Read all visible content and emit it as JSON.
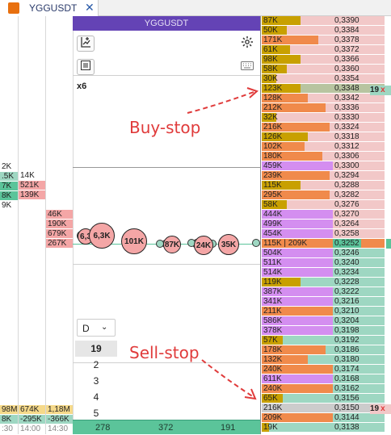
{
  "tab": {
    "title": "YGGUSDT",
    "close": "✕"
  },
  "panel": {
    "title": "YGGUSDT",
    "multiplier": "x6"
  },
  "left_columns": {
    "col1": [
      {
        "t": "2K",
        "bg": ""
      },
      {
        "t": ".5K",
        "bg": "#9ed7c2"
      },
      {
        "t": "7K",
        "bg": "#5bc49a"
      },
      {
        "t": "8K",
        "bg": "#5bc49a"
      },
      {
        "t": "9K",
        "bg": ""
      }
    ],
    "col2": [
      {
        "t": "14K",
        "bg": ""
      },
      {
        "t": "521K",
        "bg": "#f4a6a6"
      },
      {
        "t": "139K",
        "bg": "#f4a6a6"
      }
    ],
    "col3": [
      {
        "t": "46K",
        "bg": "#f4a6a6"
      },
      {
        "t": "190K",
        "bg": "#f4a6a6"
      },
      {
        "t": "679K",
        "bg": "#f4a6a6"
      },
      {
        "t": "267K",
        "bg": "#f4a6a6"
      }
    ]
  },
  "bottom_left": {
    "row1": [
      "98M",
      "674K",
      "1,18M"
    ],
    "row2": [
      "8K",
      "-295K",
      "-366K"
    ],
    "row3": [
      ":30",
      "14:00",
      "14:30"
    ]
  },
  "bubbles": [
    "6,3",
    "6,3K",
    "101K",
    "87K",
    "24K",
    "35K"
  ],
  "dropdown": {
    "selected": "D",
    "options": [
      "19",
      "2",
      "3",
      "4",
      "5"
    ]
  },
  "bottom_bar": [
    "278",
    "372",
    "191"
  ],
  "annotations": {
    "buy": "Buy-stop",
    "sell": "Sell-stop"
  },
  "right_markers": {
    "top": "19",
    "bottom": "19",
    "x": "x"
  },
  "colors": {
    "sell": "#f08a4b",
    "buy_green": "#9ed7c2",
    "purple": "#d48ef0",
    "olive": "#c8a000",
    "pink_bg": "#f2c8c8"
  },
  "ladder": [
    {
      "v": "87K",
      "p": "0,3390",
      "f": 0.55,
      "c": "#c8a000",
      "bg": "#f2c8c8"
    },
    {
      "v": "50K",
      "p": "0,3384",
      "f": 0.35,
      "c": "#c8a000",
      "bg": "#f2c8c8"
    },
    {
      "v": "171K",
      "p": "0,3378",
      "f": 0.8,
      "c": "#f08a4b",
      "bg": "#f2c8c8"
    },
    {
      "v": "61K",
      "p": "0,3372",
      "f": 0.4,
      "c": "#c8a000",
      "bg": "#f2c8c8"
    },
    {
      "v": "98K",
      "p": "0,3366",
      "f": 0.55,
      "c": "#c8a000",
      "bg": "#f2c8c8"
    },
    {
      "v": "58K",
      "p": "0,3360",
      "f": 0.35,
      "c": "#c8a000",
      "bg": "#f2c8c8"
    },
    {
      "v": "30K",
      "p": "0,3354",
      "f": 0.2,
      "c": "#c8a000",
      "bg": "#f2c8c8"
    },
    {
      "v": "123K",
      "p": "0,3348",
      "f": 0.55,
      "c": "#c8a000",
      "bg": "#b8c4a0"
    },
    {
      "v": "128K",
      "p": "0,3342",
      "f": 0.65,
      "c": "#f08a4b",
      "bg": "#f2c8c8"
    },
    {
      "v": "212K",
      "p": "0,3336",
      "f": 0.9,
      "c": "#f08a4b",
      "bg": "#f2c8c8"
    },
    {
      "v": "32K",
      "p": "0,3330",
      "f": 0.2,
      "c": "#c8a000",
      "bg": "#f2c8c8"
    },
    {
      "v": "216K",
      "p": "0,3324",
      "f": 0.95,
      "c": "#f08a4b",
      "bg": "#f2c8c8"
    },
    {
      "v": "126K",
      "p": "0,3318",
      "f": 0.65,
      "c": "#c8a000",
      "bg": "#f2c8c8"
    },
    {
      "v": "102K",
      "p": "0,3312",
      "f": 0.6,
      "c": "#f08a4b",
      "bg": "#f2c8c8"
    },
    {
      "v": "180K",
      "p": "0,3306",
      "f": 0.85,
      "c": "#f08a4b",
      "bg": "#f2c8c8"
    },
    {
      "v": "459K",
      "p": "0,3300",
      "f": 1.0,
      "c": "#d48ef0",
      "bg": "#f2c8c8"
    },
    {
      "v": "239K",
      "p": "0,3294",
      "f": 0.95,
      "c": "#f08a4b",
      "bg": "#f2c8c8"
    },
    {
      "v": "115K",
      "p": "0,3288",
      "f": 0.55,
      "c": "#c8a000",
      "bg": "#f2c8c8"
    },
    {
      "v": "295K",
      "p": "0,3282",
      "f": 0.95,
      "c": "#f08a4b",
      "bg": "#f2c8c8"
    },
    {
      "v": "58K",
      "p": "0,3276",
      "f": 0.35,
      "c": "#c8a000",
      "bg": "#f2c8c8"
    },
    {
      "v": "444K",
      "p": "0,3270",
      "f": 1.0,
      "c": "#d48ef0",
      "bg": "#f2c8c8"
    },
    {
      "v": "499K",
      "p": "0,3264",
      "f": 1.0,
      "c": "#d48ef0",
      "bg": "#f2c8c8"
    },
    {
      "v": "454K",
      "p": "0,3258",
      "f": 1.0,
      "c": "#d48ef0",
      "bg": "#f2c8c8"
    },
    {
      "v": "115K | 209K",
      "p": "0,3252",
      "f": 1.0,
      "c": "#f08a4b",
      "bg": "#f08a4b"
    },
    {
      "v": "504K",
      "p": "0,3246",
      "f": 1.0,
      "c": "#d48ef0",
      "bg": "#9ed7c2"
    },
    {
      "v": "511K",
      "p": "0,3240",
      "f": 1.0,
      "c": "#d48ef0",
      "bg": "#9ed7c2"
    },
    {
      "v": "514K",
      "p": "0,3234",
      "f": 1.0,
      "c": "#d48ef0",
      "bg": "#9ed7c2"
    },
    {
      "v": "119K",
      "p": "0,3228",
      "f": 0.55,
      "c": "#c8a000",
      "bg": "#9ed7c2"
    },
    {
      "v": "387K",
      "p": "0,3222",
      "f": 1.0,
      "c": "#d48ef0",
      "bg": "#9ed7c2"
    },
    {
      "v": "341K",
      "p": "0,3216",
      "f": 1.0,
      "c": "#d48ef0",
      "bg": "#9ed7c2"
    },
    {
      "v": "211K",
      "p": "0,3210",
      "f": 1.0,
      "c": "#f08a4b",
      "bg": "#9ed7c2"
    },
    {
      "v": "586K",
      "p": "0,3204",
      "f": 1.0,
      "c": "#d48ef0",
      "bg": "#9ed7c2"
    },
    {
      "v": "378K",
      "p": "0,3198",
      "f": 1.0,
      "c": "#d48ef0",
      "bg": "#9ed7c2"
    },
    {
      "v": "57K",
      "p": "0,3192",
      "f": 0.3,
      "c": "#c8a000",
      "bg": "#9ed7c2"
    },
    {
      "v": "178K",
      "p": "0,3186",
      "f": 0.9,
      "c": "#f08a4b",
      "bg": "#9ed7c2"
    },
    {
      "v": "132K",
      "p": "0,3180",
      "f": 0.65,
      "c": "#f08a4b",
      "bg": "#9ed7c2"
    },
    {
      "v": "240K",
      "p": "0,3174",
      "f": 1.0,
      "c": "#f08a4b",
      "bg": "#9ed7c2"
    },
    {
      "v": "611K",
      "p": "0,3168",
      "f": 1.0,
      "c": "#d48ef0",
      "bg": "#9ed7c2"
    },
    {
      "v": "240K",
      "p": "0,3162",
      "f": 1.0,
      "c": "#f08a4b",
      "bg": "#9ed7c2"
    },
    {
      "v": "65K",
      "p": "0,3156",
      "f": 0.3,
      "c": "#c8a000",
      "bg": "#9ed7c2"
    },
    {
      "v": "216K",
      "p": "0,3150",
      "f": 0.0,
      "c": "#f08a4b",
      "bg": "#cccccc"
    },
    {
      "v": "209K",
      "p": "0,3144",
      "f": 1.0,
      "c": "#f08a4b",
      "bg": "#9ed7c2"
    },
    {
      "v": "19K",
      "p": "0,3138",
      "f": 0.1,
      "c": "#c8a000",
      "bg": "#9ed7c2"
    }
  ]
}
